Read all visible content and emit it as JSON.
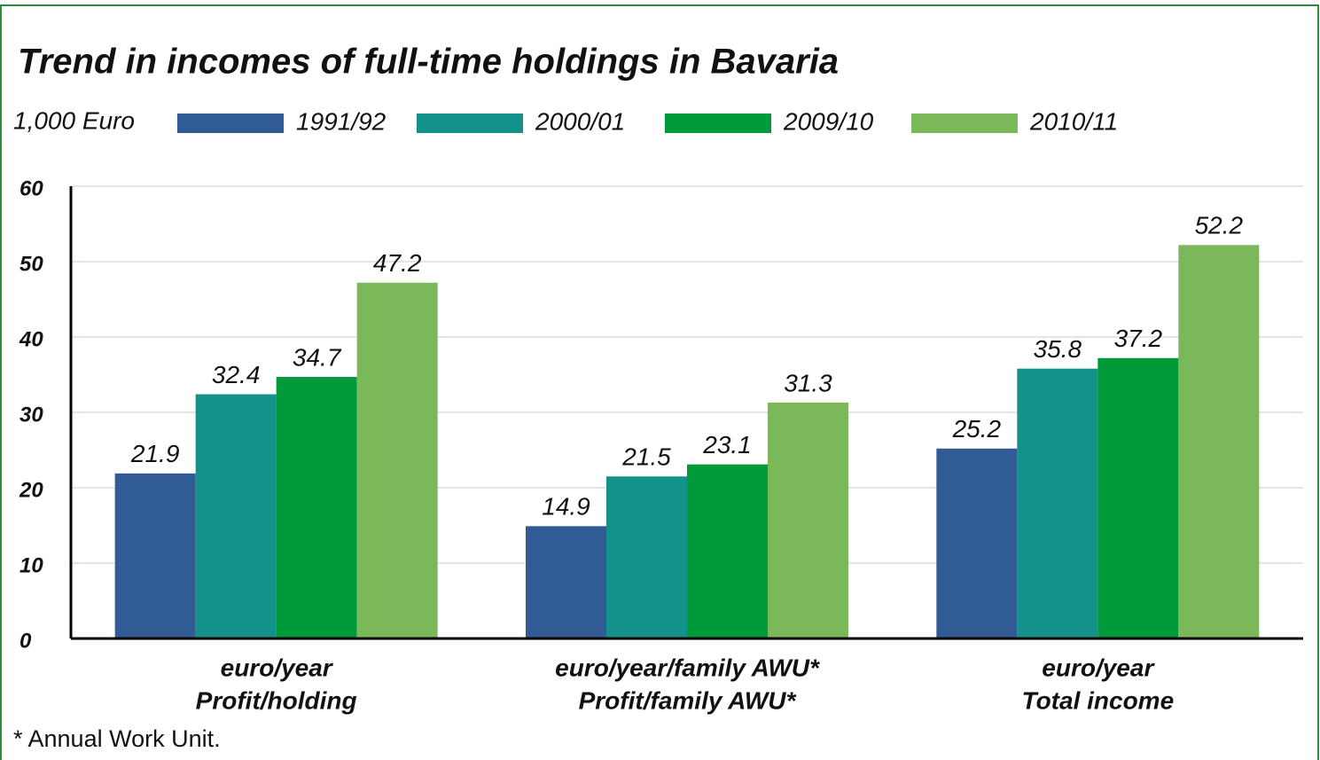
{
  "chart_data": {
    "type": "bar",
    "title": "Trend in incomes of full-time holdings in Bavaria",
    "y_label": "1,000 Euro",
    "categories": [
      [
        "euro/year",
        "Profit/holding"
      ],
      [
        "euro/year/family AWU*",
        "Profit/family AWU*"
      ],
      [
        "euro/year",
        "Total income"
      ]
    ],
    "series": [
      {
        "name": "1991/92",
        "color": "#315b94",
        "values": [
          21.9,
          14.9,
          25.2
        ]
      },
      {
        "name": "2000/01",
        "color": "#13928a",
        "values": [
          32.4,
          21.5,
          35.8
        ]
      },
      {
        "name": "2009/10",
        "color": "#009a3b",
        "values": [
          34.7,
          23.1,
          37.2
        ]
      },
      {
        "name": "2010/11",
        "color": "#7ab85a",
        "values": [
          47.2,
          31.3,
          52.2
        ]
      }
    ],
    "ylim": [
      0,
      60
    ],
    "yticks": [
      0,
      10,
      20,
      30,
      40,
      50,
      60
    ],
    "grid": true,
    "footnote": "* Annual Work Unit."
  }
}
